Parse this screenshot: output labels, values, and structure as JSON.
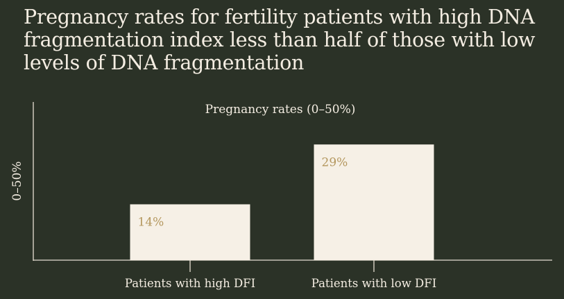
{
  "chart_data": {
    "type": "bar",
    "title": "Pregnancy rates for fertility patients with high DNA fragmentation index less than half of those with low levels of DNA fragmentation",
    "subtitle": "Pregnancy rates (0–50%)",
    "ylabel": "0–50%",
    "xlabel": "",
    "categories": [
      "Patients with high DFI",
      "Patients with low DFI"
    ],
    "values": [
      14,
      29
    ],
    "data_labels": [
      "14%",
      "29%"
    ],
    "ylim": [
      0,
      50
    ],
    "grid": false,
    "legend": "none",
    "colors": {
      "background": "#2b3227",
      "text": "#f4ede2",
      "bar": "#f6f0e6",
      "data_label": "#b4975e",
      "axis": "#e7e0d3"
    }
  }
}
